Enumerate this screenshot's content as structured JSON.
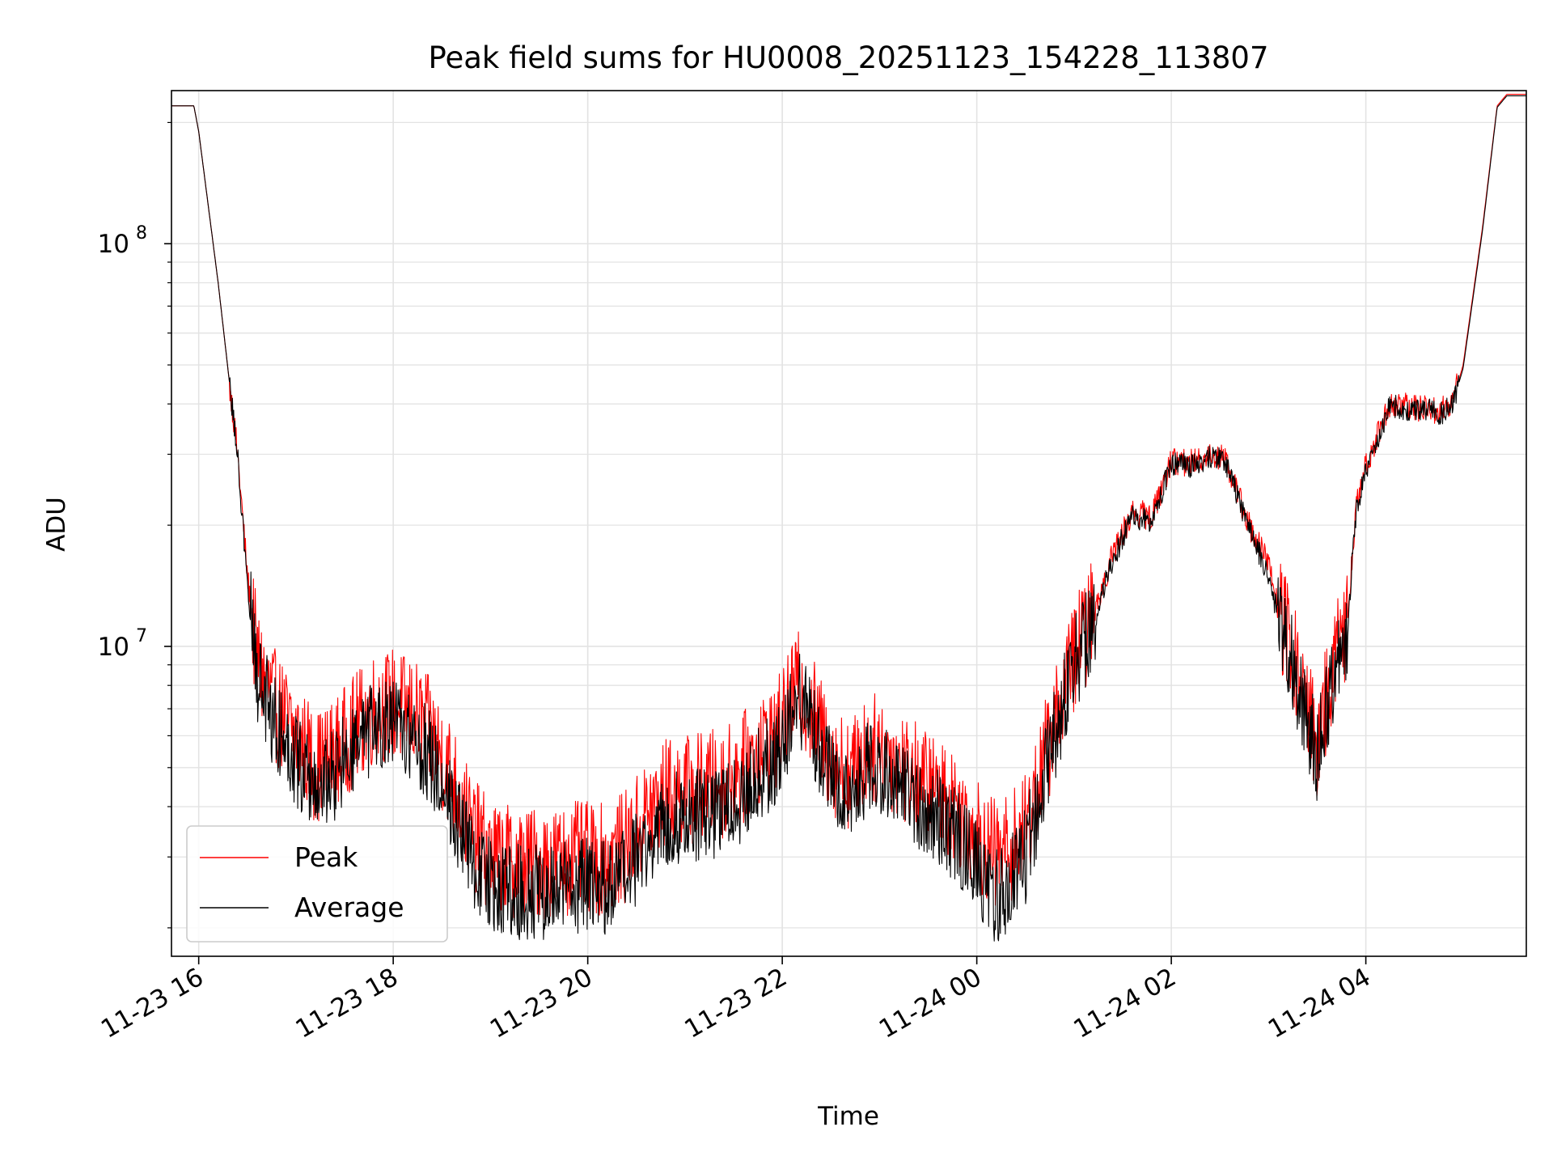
{
  "chart_data": {
    "type": "line",
    "title": "Peak field sums for HU0008_20251123_154228_113807",
    "xlabel": "Time",
    "ylabel": "ADU",
    "yscale": "log",
    "xlim_hours": [
      -0.28,
      13.65
    ],
    "ylim": [
      1700000,
      240000000
    ],
    "grid": true,
    "legend_position": "lower-left",
    "x_ticks": [
      {
        "hour": 0,
        "label": "11-23 16"
      },
      {
        "hour": 2,
        "label": "11-23 18"
      },
      {
        "hour": 4,
        "label": "11-23 20"
      },
      {
        "hour": 6,
        "label": "11-23 22"
      },
      {
        "hour": 8,
        "label": "11-24 00"
      },
      {
        "hour": 10,
        "label": "11-24 02"
      },
      {
        "hour": 12,
        "label": "11-24 04"
      }
    ],
    "y_major_ticks": [
      {
        "value": 10000000,
        "base": "10",
        "exp": "7"
      },
      {
        "value": 100000000,
        "base": "10",
        "exp": "8"
      }
    ],
    "x_unit_note": "hours after 2025-11-23 16:00",
    "series": [
      {
        "name": "Peak",
        "color": "#ff0000",
        "noise_amplitude": 0.14,
        "points": [
          [
            -0.28,
            220000000
          ],
          [
            -0.05,
            220000000
          ],
          [
            0.0,
            190000000
          ],
          [
            0.2,
            80000000
          ],
          [
            0.4,
            30000000
          ],
          [
            0.5,
            15000000
          ],
          [
            0.6,
            9200000
          ],
          [
            0.8,
            7000000
          ],
          [
            1.0,
            6000000
          ],
          [
            1.15,
            5300000
          ],
          [
            1.2,
            5000000
          ],
          [
            1.4,
            5400000
          ],
          [
            1.6,
            6200000
          ],
          [
            1.8,
            7000000
          ],
          [
            2.0,
            7200000
          ],
          [
            2.2,
            6800000
          ],
          [
            2.4,
            6000000
          ],
          [
            2.6,
            4800000
          ],
          [
            2.8,
            3500000
          ],
          [
            3.0,
            3000000
          ],
          [
            3.3,
            2900000
          ],
          [
            3.6,
            2900000
          ],
          [
            3.9,
            3000000
          ],
          [
            4.2,
            2950000
          ],
          [
            4.4,
            3200000
          ],
          [
            4.6,
            3800000
          ],
          [
            4.8,
            4300000
          ],
          [
            5.0,
            4400000
          ],
          [
            5.2,
            4500000
          ],
          [
            5.4,
            4600000
          ],
          [
            5.6,
            5000000
          ],
          [
            5.8,
            5700000
          ],
          [
            6.0,
            6300000
          ],
          [
            6.15,
            8000000
          ],
          [
            6.3,
            7000000
          ],
          [
            6.5,
            5300000
          ],
          [
            6.7,
            4800000
          ],
          [
            6.9,
            5600000
          ],
          [
            7.1,
            5400000
          ],
          [
            7.3,
            4900000
          ],
          [
            7.5,
            4500000
          ],
          [
            7.7,
            4200000
          ],
          [
            7.9,
            3700000
          ],
          [
            8.1,
            3200000
          ],
          [
            8.2,
            3000000
          ],
          [
            8.35,
            3200000
          ],
          [
            8.5,
            3500000
          ],
          [
            8.6,
            4300000
          ],
          [
            8.8,
            6500000
          ],
          [
            9.0,
            9500000
          ],
          [
            9.2,
            12000000
          ],
          [
            9.4,
            17000000
          ],
          [
            9.6,
            21500000
          ],
          [
            9.8,
            21000000
          ],
          [
            10.0,
            29000000
          ],
          [
            10.2,
            28500000
          ],
          [
            10.4,
            30000000
          ],
          [
            10.55,
            29500000
          ],
          [
            10.8,
            20000000
          ],
          [
            11.0,
            16000000
          ],
          [
            11.1,
            12500000
          ],
          [
            11.25,
            9500000
          ],
          [
            11.4,
            7000000
          ],
          [
            11.5,
            5800000
          ],
          [
            11.6,
            7500000
          ],
          [
            11.7,
            9500000
          ],
          [
            11.8,
            11000000
          ],
          [
            11.9,
            22000000
          ],
          [
            12.0,
            28000000
          ],
          [
            12.15,
            35000000
          ],
          [
            12.25,
            40000000
          ],
          [
            12.5,
            39000000
          ],
          [
            12.65,
            39500000
          ],
          [
            12.75,
            38000000
          ],
          [
            12.9,
            41000000
          ],
          [
            13.0,
            50000000
          ],
          [
            13.2,
            110000000
          ],
          [
            13.35,
            220000000
          ],
          [
            13.45,
            235000000
          ],
          [
            13.65,
            235000000
          ]
        ]
      },
      {
        "name": "Average",
        "color": "#000000",
        "noise_amplitude": 0.12,
        "points": [
          [
            -0.28,
            220000000
          ],
          [
            -0.05,
            220000000
          ],
          [
            0.0,
            190000000
          ],
          [
            0.2,
            80000000
          ],
          [
            0.4,
            30000000
          ],
          [
            0.5,
            14000000
          ],
          [
            0.6,
            8500000
          ],
          [
            0.8,
            6300000
          ],
          [
            1.0,
            5300000
          ],
          [
            1.15,
            4600000
          ],
          [
            1.2,
            4400000
          ],
          [
            1.4,
            4800000
          ],
          [
            1.6,
            5500000
          ],
          [
            1.8,
            6200000
          ],
          [
            2.0,
            6300000
          ],
          [
            2.2,
            6000000
          ],
          [
            2.4,
            5200000
          ],
          [
            2.6,
            4100000
          ],
          [
            2.8,
            3000000
          ],
          [
            3.0,
            2550000
          ],
          [
            3.3,
            2450000
          ],
          [
            3.6,
            2450000
          ],
          [
            3.9,
            2550000
          ],
          [
            4.2,
            2500000
          ],
          [
            4.4,
            2700000
          ],
          [
            4.6,
            3200000
          ],
          [
            4.8,
            3700000
          ],
          [
            5.0,
            3800000
          ],
          [
            5.2,
            3850000
          ],
          [
            5.4,
            3950000
          ],
          [
            5.6,
            4300000
          ],
          [
            5.8,
            4900000
          ],
          [
            6.0,
            5500000
          ],
          [
            6.15,
            7500000
          ],
          [
            6.3,
            6500000
          ],
          [
            6.5,
            4700000
          ],
          [
            6.7,
            4300000
          ],
          [
            6.9,
            5000000
          ],
          [
            7.1,
            4800000
          ],
          [
            7.3,
            4300000
          ],
          [
            7.5,
            3900000
          ],
          [
            7.7,
            3600000
          ],
          [
            7.9,
            3100000
          ],
          [
            8.1,
            2600000
          ],
          [
            8.2,
            2400000
          ],
          [
            8.35,
            2600000
          ],
          [
            8.5,
            3000000
          ],
          [
            8.6,
            3800000
          ],
          [
            8.8,
            6000000
          ],
          [
            9.0,
            9000000
          ],
          [
            9.2,
            11500000
          ],
          [
            9.4,
            16500000
          ],
          [
            9.6,
            21000000
          ],
          [
            9.8,
            20500000
          ],
          [
            10.0,
            28500000
          ],
          [
            10.2,
            28000000
          ],
          [
            10.4,
            29500000
          ],
          [
            10.55,
            29000000
          ],
          [
            10.8,
            19500000
          ],
          [
            11.0,
            15000000
          ],
          [
            11.1,
            11800000
          ],
          [
            11.25,
            9000000
          ],
          [
            11.4,
            6500000
          ],
          [
            11.5,
            5300000
          ],
          [
            11.6,
            7000000
          ],
          [
            11.7,
            9000000
          ],
          [
            11.8,
            10500000
          ],
          [
            11.9,
            21500000
          ],
          [
            12.0,
            27500000
          ],
          [
            12.15,
            34500000
          ],
          [
            12.25,
            39500000
          ],
          [
            12.5,
            38500000
          ],
          [
            12.65,
            39000000
          ],
          [
            12.75,
            37500000
          ],
          [
            12.9,
            40500000
          ],
          [
            13.0,
            49000000
          ],
          [
            13.2,
            108000000
          ],
          [
            13.35,
            218000000
          ],
          [
            13.45,
            233000000
          ],
          [
            13.65,
            233000000
          ]
        ]
      }
    ]
  }
}
